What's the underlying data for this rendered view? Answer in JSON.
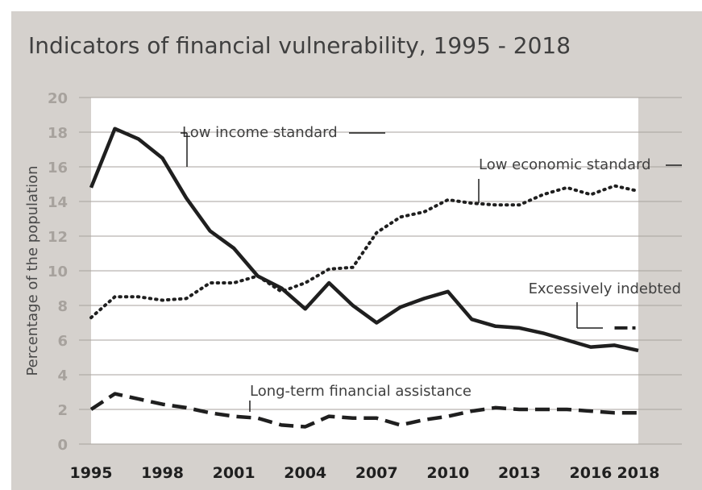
{
  "chart_data": {
    "type": "line",
    "title": "Indicators of financial vulnerability, 1995 - 2018",
    "ylabel": "Percentage of the population",
    "xlabel": "",
    "ylim": [
      0,
      20
    ],
    "y_ticks": [
      "20",
      "18",
      "16",
      "14",
      "12",
      "10",
      "8",
      "6",
      "4",
      "2",
      "0"
    ],
    "x_ticks": [
      "1995",
      "1998",
      "2001",
      "2004",
      "2007",
      "2010",
      "2013",
      "2016",
      "2018"
    ],
    "grid": true,
    "x": [
      1995,
      1996,
      1997,
      1998,
      1999,
      2000,
      2001,
      2002,
      2003,
      2004,
      2005,
      2006,
      2007,
      2008,
      2009,
      2010,
      2011,
      2012,
      2013,
      2014,
      2015,
      2016,
      2017,
      2018
    ],
    "series": [
      {
        "name": "Low income standard",
        "style": "solid",
        "values": [
          14.8,
          18.2,
          17.6,
          16.5,
          14.2,
          12.3,
          11.3,
          9.7,
          9.0,
          7.8,
          9.3,
          8.0,
          7.0,
          7.9,
          8.4,
          8.8,
          7.2,
          6.8,
          6.7,
          6.4,
          6.0,
          5.6,
          5.7,
          5.4
        ]
      },
      {
        "name": "Low economic standard",
        "style": "dotted",
        "values": [
          7.3,
          8.5,
          8.5,
          8.3,
          8.4,
          9.3,
          9.3,
          9.7,
          8.8,
          9.3,
          10.1,
          10.2,
          12.2,
          13.1,
          13.4,
          14.1,
          13.9,
          13.8,
          13.8,
          14.4,
          14.8,
          14.4,
          14.9,
          14.6
        ]
      },
      {
        "name": "Long-term financial assistance",
        "style": "dashed",
        "values": [
          2.0,
          2.9,
          2.6,
          2.3,
          2.1,
          1.8,
          1.6,
          1.5,
          1.1,
          1.0,
          1.6,
          1.5,
          1.5,
          1.1,
          1.4,
          1.6,
          1.9,
          2.1,
          2.0,
          2.0,
          2.0,
          1.9,
          1.8,
          1.8
        ]
      },
      {
        "name": "Excessively indebted",
        "style": "dashdot",
        "values": [
          null,
          null,
          null,
          null,
          null,
          null,
          null,
          null,
          null,
          null,
          null,
          null,
          null,
          null,
          null,
          null,
          null,
          null,
          null,
          null,
          null,
          null,
          6.7,
          6.7
        ]
      }
    ],
    "colors": {
      "background": "#d5d1cd",
      "plot_fill": "#ffffff",
      "gridline": "#a7a29d",
      "line": "#1f1f1f",
      "title": "#3f3f3f",
      "y_tick": "#a7a29d",
      "x_tick": "#1f1f1f"
    }
  }
}
